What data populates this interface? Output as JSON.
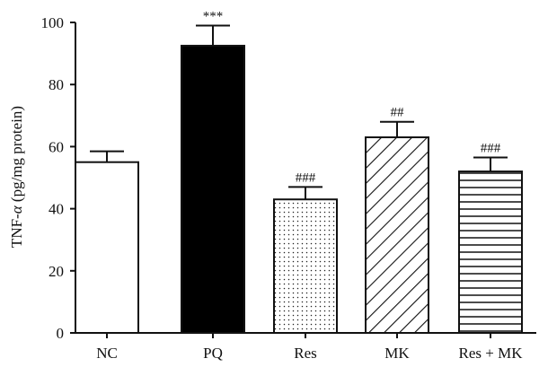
{
  "chart_data": {
    "type": "bar",
    "ylabel_prefix": "TNF-",
    "ylabel_greek": "α",
    "ylabel_suffix": " (pg/mg protein)",
    "xlabel": "",
    "ylim": [
      0,
      100
    ],
    "yticks": [
      "0",
      "20",
      "40",
      "60",
      "80",
      "100"
    ],
    "categories": [
      "NC",
      "PQ",
      "Res",
      "MK",
      "Res + MK"
    ],
    "values": [
      55,
      92.5,
      43,
      63,
      52
    ],
    "errors": [
      3.5,
      6.5,
      4,
      5,
      4.5
    ],
    "annotations": [
      "",
      "***",
      "###",
      "##",
      "###"
    ],
    "fills": [
      "white",
      "black",
      "dots",
      "diagonal",
      "horizontal"
    ],
    "grid": false
  }
}
